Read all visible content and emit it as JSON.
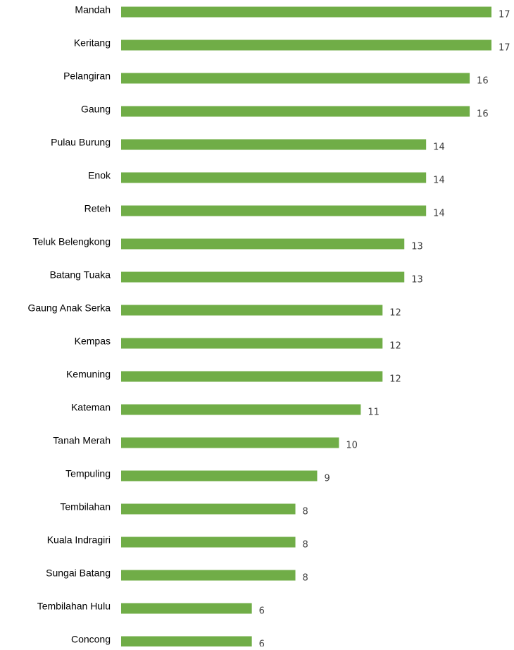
{
  "chart_data": {
    "type": "bar",
    "orientation": "horizontal",
    "categories": [
      "Mandah",
      "Keritang",
      "Pelangiran",
      "Gaung",
      "Pulau Burung",
      "Enok",
      "Reteh",
      "Teluk Belengkong",
      "Batang Tuaka",
      "Gaung Anak Serka",
      "Kempas",
      "Kemuning",
      "Kateman",
      "Tanah Merah",
      "Tempuling",
      "Tembilahan",
      "Kuala Indragiri",
      "Sungai Batang",
      "Tembilahan Hulu",
      "Concong"
    ],
    "values": [
      17,
      17,
      16,
      16,
      14,
      14,
      14,
      13,
      13,
      12,
      12,
      12,
      11,
      10,
      9,
      8,
      8,
      8,
      6,
      6
    ],
    "color": "#70ad47"
  }
}
